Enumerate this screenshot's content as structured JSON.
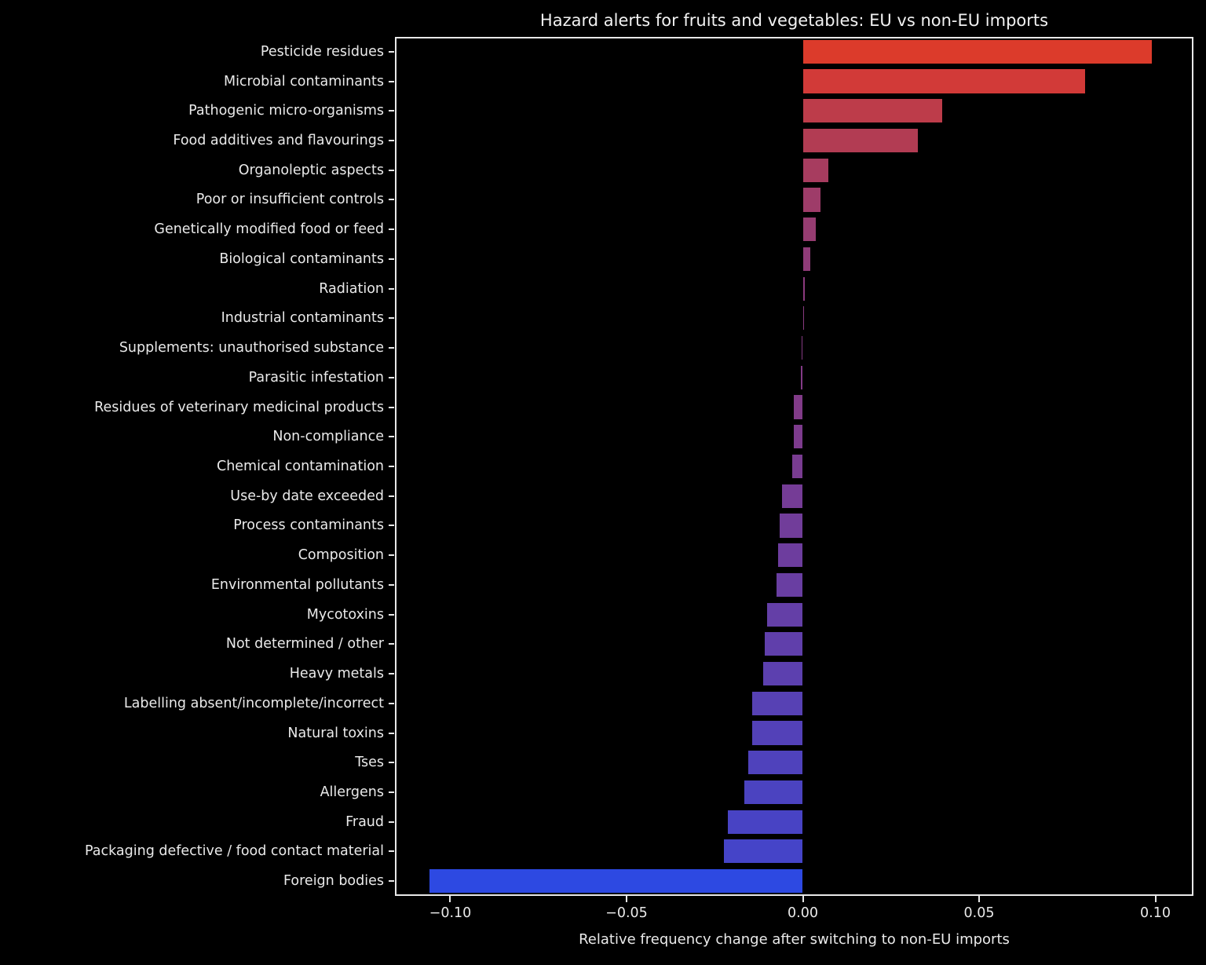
{
  "colors": {
    "background": "#000000",
    "text": "#eaeaea",
    "frame": "#e8e8e8"
  },
  "chart_data": {
    "type": "bar",
    "orientation": "horizontal",
    "title": "Hazard alerts for fruits and vegetables: EU vs non-EU imports",
    "xlabel": "Relative frequency change after switching to non-EU imports",
    "ylabel": "",
    "grid": false,
    "legend": null,
    "xlim": [
      -0.1157,
      0.1108
    ],
    "xticks": [
      -0.1,
      -0.05,
      0.0,
      0.05,
      0.1
    ],
    "xtick_labels": [
      "−0.10",
      "−0.05",
      "0.00",
      "0.05",
      "0.10"
    ],
    "categories": [
      "Pesticide residues",
      "Microbial contaminants",
      "Pathogenic micro-organisms",
      "Food additives and flavourings",
      "Organoleptic aspects",
      "Poor or insufficient controls",
      "Genetically modified food or feed",
      "Biological contaminants",
      "Radiation",
      "Industrial contaminants",
      "Supplements: unauthorised substance",
      "Parasitic infestation",
      "Residues of veterinary medicinal products",
      "Non-compliance",
      "Chemical contamination",
      "Use-by date exceeded",
      "Process contaminants",
      "Composition",
      "Environmental pollutants",
      "Mycotoxins",
      "Not determined / other",
      "Heavy metals",
      "Labelling absent/incomplete/incorrect",
      "Natural toxins",
      "Tses",
      "Allergens",
      "Fraud",
      "Packaging defective / food contact material",
      "Foreign bodies"
    ],
    "values": [
      0.099,
      0.08,
      0.0395,
      0.0327,
      0.0073,
      0.005,
      0.0037,
      0.0022,
      0.0006,
      0.0001,
      -0.0003,
      -0.0006,
      -0.0025,
      -0.0026,
      -0.0029,
      -0.0059,
      -0.0065,
      -0.007,
      -0.0074,
      -0.0102,
      -0.0107,
      -0.0112,
      -0.0143,
      -0.0144,
      -0.0154,
      -0.0165,
      -0.0213,
      -0.0224,
      -0.1058
    ],
    "bar_colors": [
      "#dc3b2b",
      "#d23a38",
      "#bd3c4a",
      "#b23c53",
      "#a73c5f",
      "#9e3c69",
      "#963c71",
      "#8f3b78",
      "#8b3a7d",
      "#883a80",
      "#853a83",
      "#833a86",
      "#813b88",
      "#7d3b8d",
      "#793c91",
      "#753c96",
      "#713d9a",
      "#6d3d9e",
      "#693ea2",
      "#643fa7",
      "#603fab",
      "#5c40af",
      "#5741b4",
      "#5341b8",
      "#4f42bc",
      "#4b43c0",
      "#4843c4",
      "#4544c8",
      "#2d49e2"
    ]
  }
}
